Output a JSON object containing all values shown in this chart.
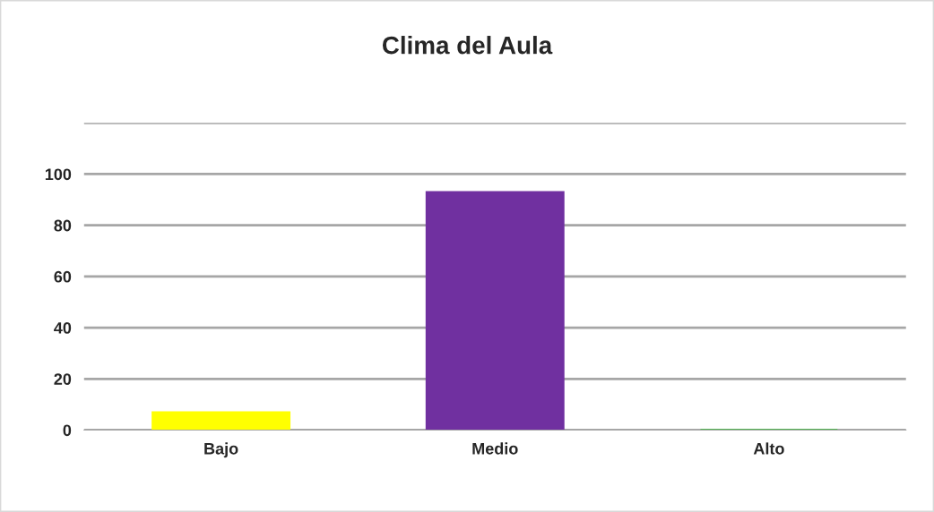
{
  "chart_data": {
    "type": "bar",
    "title": "Clima del Aula",
    "categories": [
      "Bajo",
      "Medio",
      "Alto"
    ],
    "values": [
      7,
      93,
      0
    ],
    "colors": [
      "#ffff00",
      "#7030a0",
      "#00c000"
    ],
    "ylim": [
      0,
      120
    ],
    "yticks": [
      0,
      20,
      40,
      60,
      80,
      100,
      {
        "value": 120,
        "label": null
      }
    ],
    "grid": "y"
  }
}
